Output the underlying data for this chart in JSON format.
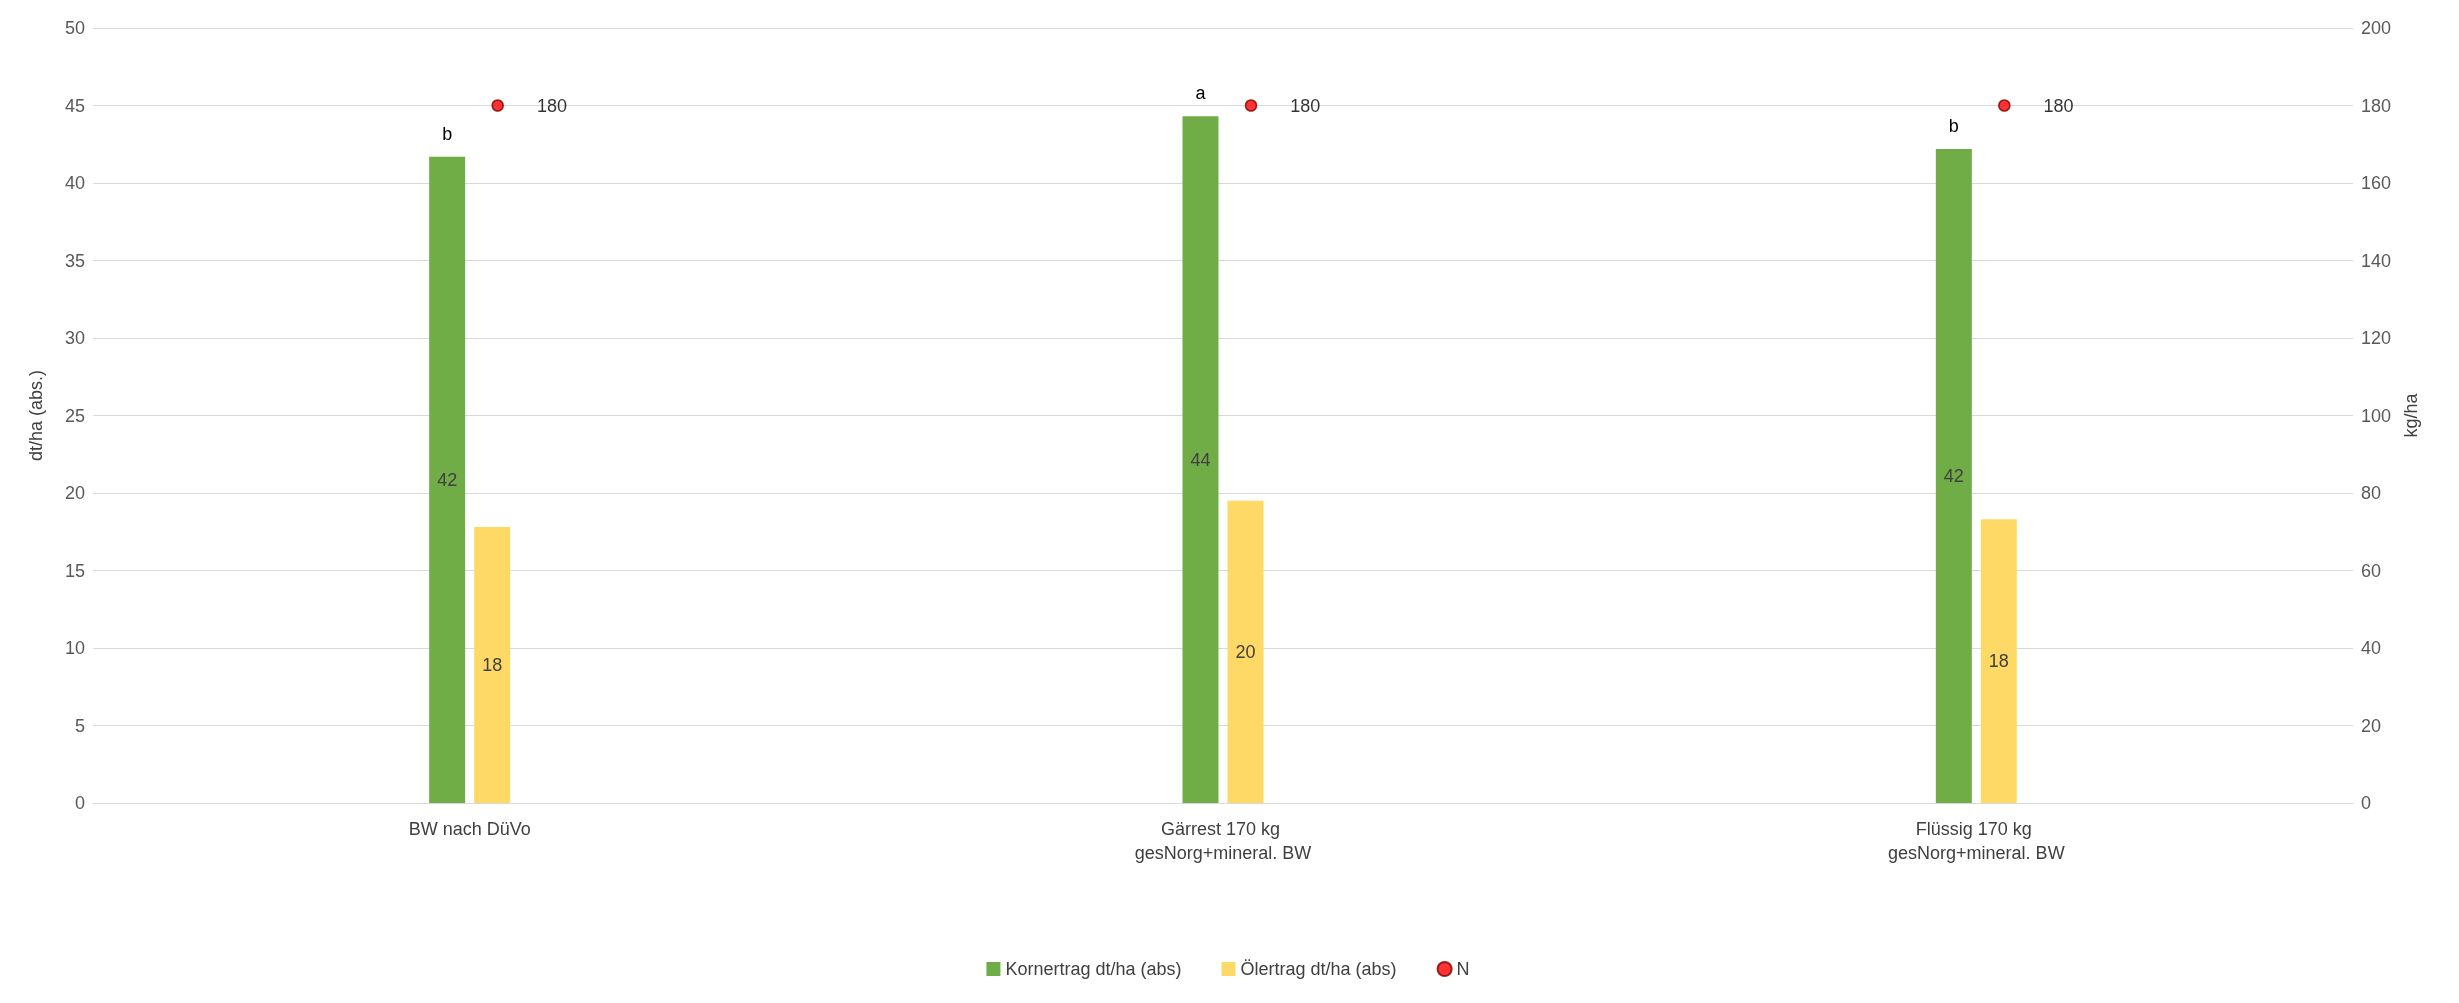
{
  "chart_data": {
    "type": "bar",
    "ylabel": "dt/ha (abs.)",
    "y2label": "kg/ha",
    "categories": [
      "BW nach DüVo",
      "Gärrest 170 kg gesNorg+mineral. BW",
      "Flüssig 170 kg gesNorg+mineral. BW"
    ],
    "series": [
      {
        "name": "Kornertrag dt/ha (abs)",
        "color": "#70ad47",
        "values": [
          41.7,
          44.3,
          42.2
        ],
        "value_labels": [
          "42",
          "44",
          "42"
        ]
      },
      {
        "name": "Ölertrag dt/ha (abs)",
        "color": "#ffd966",
        "values": [
          17.8,
          19.5,
          18.3
        ],
        "value_labels": [
          "18",
          "20",
          "18"
        ]
      },
      {
        "name": "N",
        "type": "scatter",
        "axis": "y2",
        "color": "#ff0000",
        "marker": "circle",
        "values": [
          180,
          180,
          180
        ],
        "data_labels": true
      }
    ],
    "ylim": [
      0,
      50
    ],
    "yticks": [
      0,
      5,
      10,
      15,
      20,
      25,
      30,
      35,
      40,
      45,
      50
    ],
    "y2lim": [
      0,
      200
    ],
    "y2ticks": [
      0,
      20,
      40,
      60,
      80,
      100,
      120,
      140,
      160,
      180,
      200
    ],
    "annotations": [
      {
        "text": "b",
        "x": "BW nach DüVo",
        "y": 41.7
      },
      {
        "text": "a",
        "x": "Gärrest 170 kg gesNorg+mineral. BW",
        "y": 44.3
      },
      {
        "text": "b",
        "x": "Flüssig 170 kg gesNorg+mineral. BW",
        "y": 42.2
      }
    ],
    "grid": "y",
    "legend": "bottom"
  }
}
